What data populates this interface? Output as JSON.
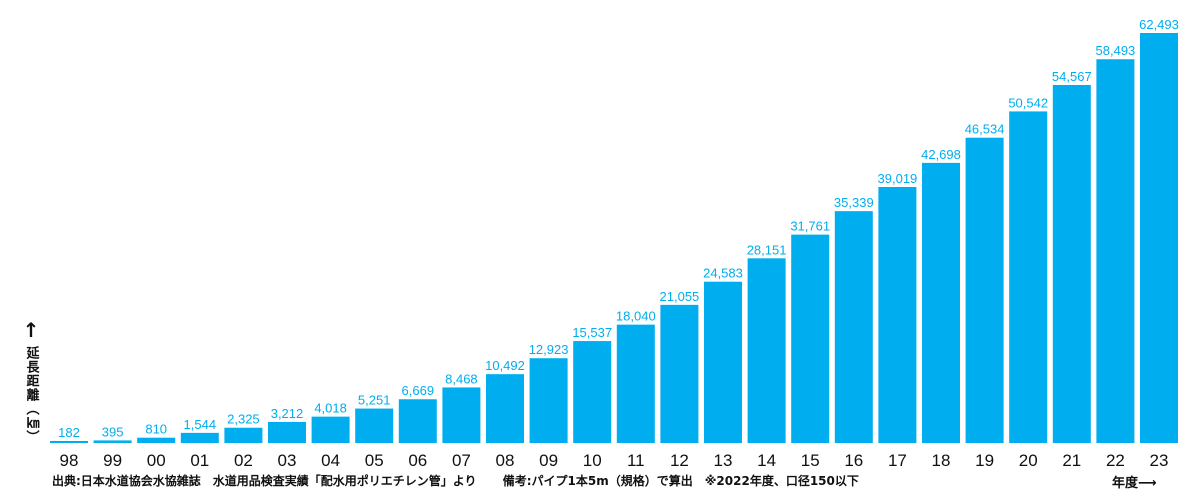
{
  "chart_data": {
    "type": "bar",
    "categories": [
      "98",
      "99",
      "00",
      "01",
      "02",
      "03",
      "04",
      "05",
      "06",
      "07",
      "08",
      "09",
      "10",
      "11",
      "12",
      "13",
      "14",
      "15",
      "16",
      "17",
      "18",
      "19",
      "20",
      "21",
      "22",
      "23"
    ],
    "values": [
      182,
      395,
      810,
      1544,
      2325,
      3212,
      4018,
      5251,
      6669,
      8468,
      10492,
      12923,
      15537,
      18040,
      21055,
      24583,
      28151,
      31761,
      35339,
      39019,
      42698,
      46534,
      50542,
      54567,
      58493,
      62493
    ],
    "value_labels": [
      "182",
      "395",
      "810",
      "1,544",
      "2,325",
      "3,212",
      "4,018",
      "5,251",
      "6,669",
      "8,468",
      "10,492",
      "12,923",
      "15,537",
      "18,040",
      "21,055",
      "24,583",
      "28,151",
      "31,761",
      "35,339",
      "39,019",
      "42,698",
      "46,534",
      "50,542",
      "54,567",
      "58,493",
      "62,493"
    ],
    "ylabel": "延長距離（㎞）",
    "xlabel": "年度",
    "ylim": [
      0,
      62493
    ],
    "bar_color": "#00AEEF",
    "label_color": "#00AEEF",
    "grid": false
  },
  "notes": {
    "source": "出典:日本水道協会水協雑誌　水道用品検査実績「配水用ポリエチレン管」より",
    "remark": "備考:パイプ1本5m（規格）で算出　※2022年度、口径150以下"
  },
  "icons": {
    "y_arrow": "arrow-up-icon",
    "x_arrow": "arrow-right-icon"
  }
}
